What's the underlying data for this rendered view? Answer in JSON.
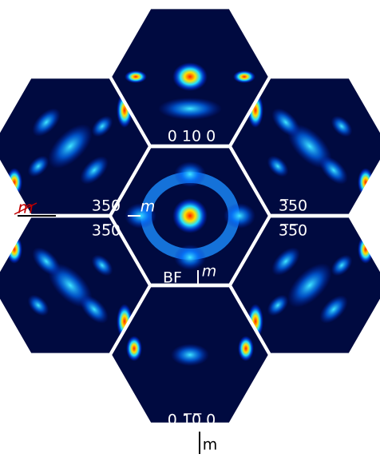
{
  "panels": {
    "top": "0 10 0",
    "upper_left": "350",
    "lower_left": "35̅0",
    "upper_right": "3̅50",
    "lower_right": "3̅5̅0",
    "center": "BF",
    "bottom": "0 1̅0̅ 0"
  },
  "mirrors": {
    "crossed": "m",
    "left": "m",
    "center": "m",
    "bottom": "m"
  }
}
